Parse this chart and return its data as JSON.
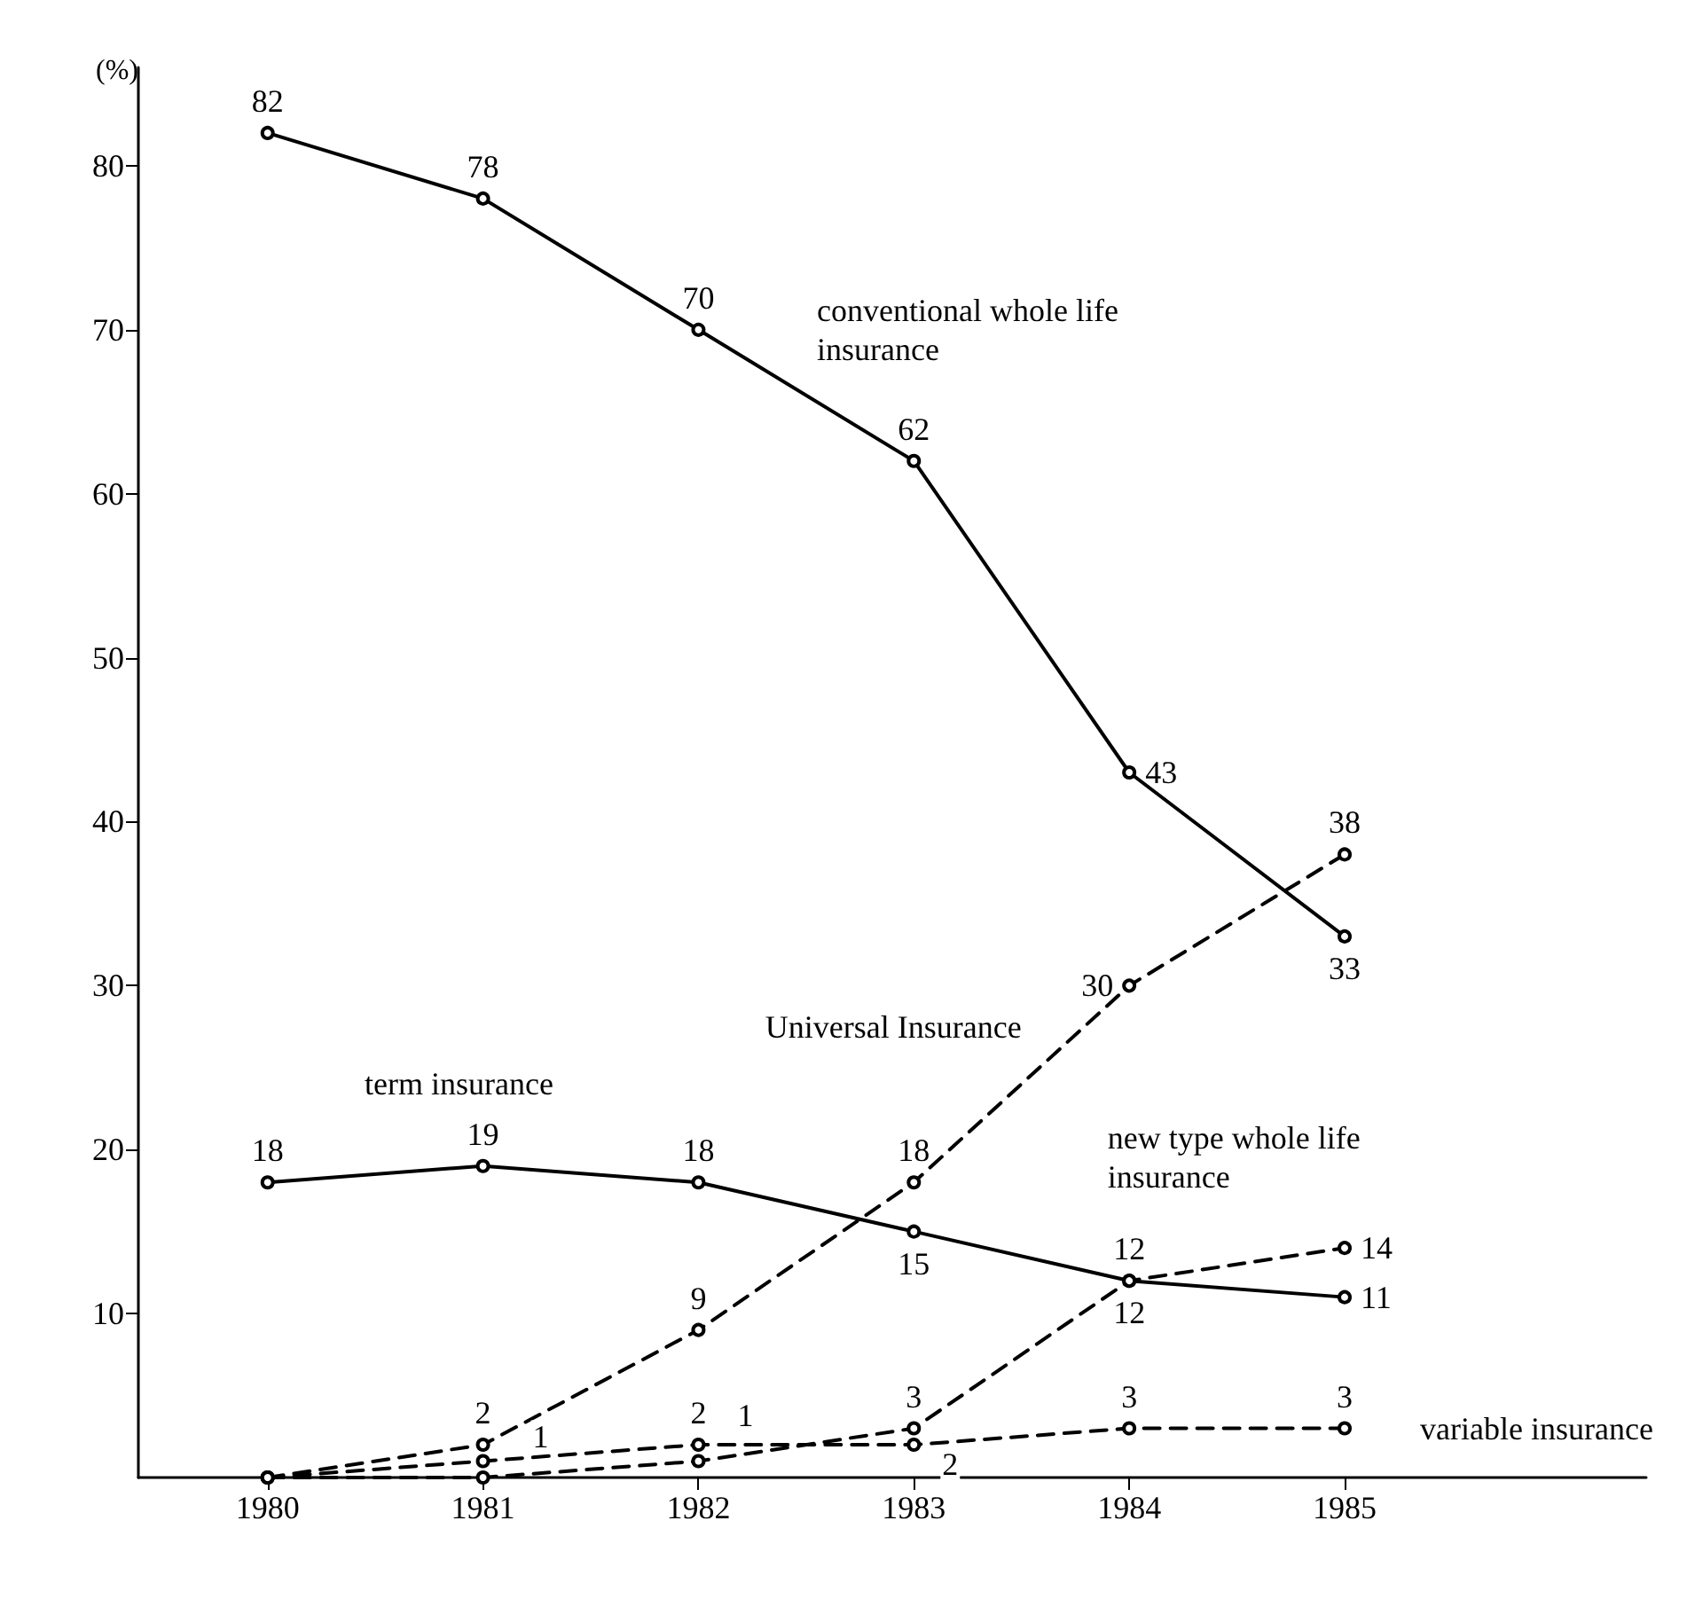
{
  "chart_data": {
    "type": "line",
    "ylabel": "(%)",
    "x": [
      1980,
      1981,
      1982,
      1983,
      1984,
      1985
    ],
    "xlim": [
      1979.4,
      1986.4
    ],
    "xticks": [
      1980,
      1981,
      1982,
      1983,
      1984,
      1985
    ],
    "ylim": [
      0,
      86
    ],
    "yticks": [
      10,
      20,
      30,
      40,
      50,
      60,
      70,
      80
    ],
    "grid": false,
    "legend": false,
    "marker": "circle",
    "series": [
      {
        "name": "conventional whole life insurance",
        "color": "#000000",
        "line_style": "solid",
        "values": [
          82,
          78,
          70,
          62,
          43,
          33
        ],
        "value_labels": [
          "82",
          "78",
          "70",
          "62",
          "43",
          "33"
        ]
      },
      {
        "name": "Universal Insurance",
        "color": "#000000",
        "line_style": "dashed",
        "values": [
          0,
          2,
          9,
          18,
          30,
          38
        ],
        "value_labels": [
          null,
          "2",
          "9",
          "18",
          "30",
          "38"
        ]
      },
      {
        "name": "term insurance",
        "color": "#000000",
        "line_style": "solid",
        "values": [
          18,
          19,
          18,
          15,
          12,
          11
        ],
        "value_labels": [
          "18",
          "19",
          "18",
          "15",
          "12",
          "11"
        ]
      },
      {
        "name": "new type whole life insurance",
        "color": "#000000",
        "line_style": "dashed",
        "values": [
          0,
          0,
          1,
          3,
          12,
          14
        ],
        "value_labels": [
          null,
          null,
          "1",
          "3",
          "12",
          "14"
        ]
      },
      {
        "name": "variable insurance",
        "color": "#000000",
        "line_style": "dashed",
        "values": [
          0,
          1,
          2,
          2,
          3,
          3
        ],
        "value_labels": [
          null,
          "1",
          "2",
          "2",
          "3",
          "3"
        ]
      }
    ]
  }
}
